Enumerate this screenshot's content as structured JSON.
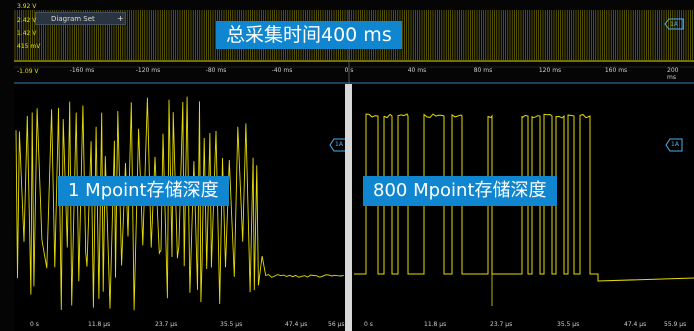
{
  "overview": {
    "tab_label": "Diagram Set",
    "tab_add": "+",
    "y_labels": [
      "3.92 V",
      "2.42 V",
      "1.42 V",
      "415 mV",
      "-1.09 V"
    ],
    "x_labels": [
      "-160 ms",
      "-120 ms",
      "-80 ms",
      "-40 ms",
      "0 s",
      "40 ms",
      "80 ms",
      "120 ms",
      "160 ms",
      "200 ms"
    ],
    "trigger_label": "1A"
  },
  "banners": {
    "top": "总采集时间400  ms",
    "left": "1  Mpoint存储深度",
    "right": "800  Mpoint存储深度"
  },
  "left_panel": {
    "x_labels": [
      "0 s",
      "11.8 µs",
      "23.7 µs",
      "35.5 µs",
      "47.4 µs",
      "56 µs"
    ],
    "trigger_label": "1A"
  },
  "right_panel": {
    "x_labels": [
      "0 s",
      "11.8 µs",
      "23.7 µs",
      "35.5 µs",
      "47.4 µs",
      "55.9 µs"
    ],
    "trigger_label": "1A"
  },
  "colors": {
    "trace": "#e6dc00",
    "banner": "#0f86cf",
    "trigger": "#4fb0f0",
    "background": "#000000"
  }
}
